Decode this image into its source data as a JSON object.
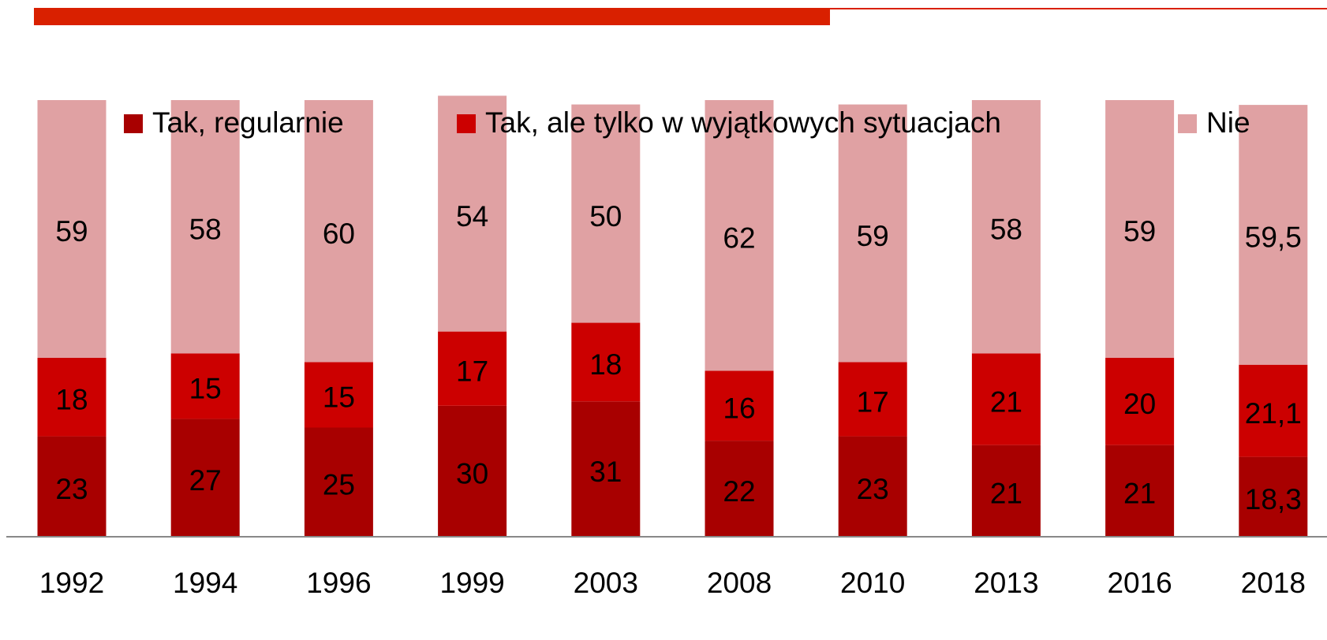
{
  "chart_data": {
    "type": "stacked-bar",
    "categories": [
      "1992",
      "1994",
      "1996",
      "1999",
      "2003",
      "2008",
      "2010",
      "2013",
      "2016",
      "2018"
    ],
    "ylim": [
      0,
      100
    ],
    "series": [
      {
        "name": "Tak, regularnie",
        "color": "#a80000",
        "values": [
          23,
          27,
          25,
          30,
          31,
          22,
          23,
          21,
          21,
          18.3
        ],
        "value_labels": [
          "23",
          "27",
          "25",
          "30",
          "31",
          "22",
          "23",
          "21",
          "21",
          "18,3"
        ]
      },
      {
        "name": "Tak, ale tylko w wyjątkowych sytuacjach",
        "color": "#cc0000",
        "values": [
          18,
          15,
          15,
          17,
          18,
          16,
          17,
          21,
          20,
          21.1
        ],
        "value_labels": [
          "18",
          "15",
          "15",
          "17",
          "18",
          "16",
          "17",
          "21",
          "20",
          "21,1"
        ]
      },
      {
        "name": "Nie",
        "color": "#e0a1a3",
        "values": [
          59,
          58,
          60,
          54,
          50,
          62,
          59,
          58,
          59,
          59.5
        ],
        "value_labels": [
          "59",
          "58",
          "60",
          "54",
          "50",
          "62",
          "59",
          "58",
          "59",
          "59,5"
        ]
      }
    ]
  }
}
